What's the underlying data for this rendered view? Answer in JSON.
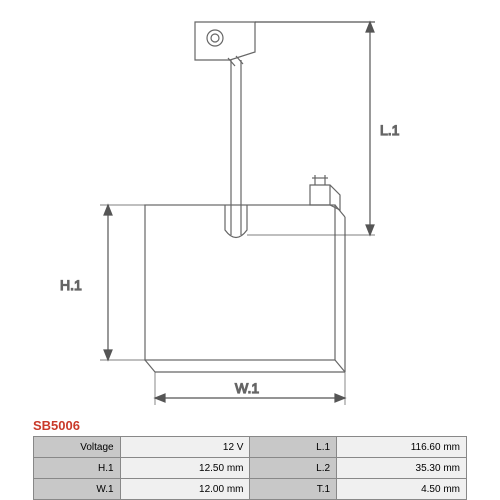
{
  "diagram": {
    "type": "technical-drawing",
    "stroke_color": "#666666",
    "stroke_width": 1.2,
    "dim_color": "#555555",
    "font_size": 14,
    "labels": {
      "L1": "L.1",
      "H1": "H.1",
      "W1": "W.1"
    }
  },
  "part_code": {
    "text": "SB5006",
    "color": "#c93a2a"
  },
  "table": {
    "label_bg": "#c8c8c8",
    "value_bg": "#f0f0f0",
    "border_color": "#888888",
    "font_size": 10,
    "rows": [
      {
        "l1": "Voltage",
        "v1": "12 V",
        "l2": "L.1",
        "v2": "116.60 mm"
      },
      {
        "l1": "H.1",
        "v1": "12.50 mm",
        "l2": "L.2",
        "v2": "35.30 mm"
      },
      {
        "l1": "W.1",
        "v1": "12.00 mm",
        "l2": "T.1",
        "v2": "4.50 mm"
      }
    ]
  }
}
